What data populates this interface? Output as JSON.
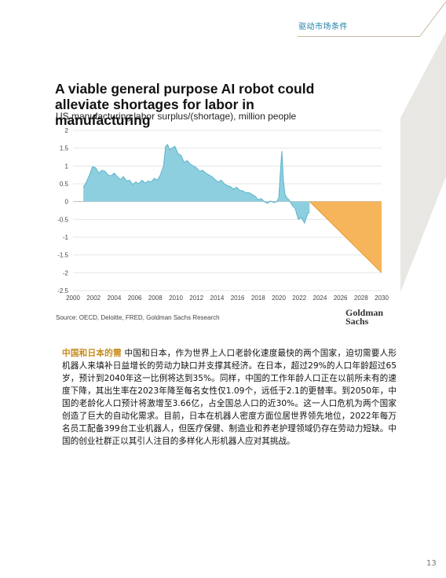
{
  "header": {
    "section_label": "驱动市场条件"
  },
  "chart": {
    "title": "A viable general purpose AI robot could alleviate shortages for labor in manufacturing",
    "subtitle": "US manufacturing labor surplus/(shortage), million people",
    "source": "Source: OECD, Deloitte, FRED, Goldman Sachs Research",
    "logo_line1": "Goldman",
    "logo_line2": "Sachs"
  },
  "chart_data": {
    "type": "area",
    "title": "A viable general purpose AI robot could alleviate shortages for labor in manufacturing",
    "ylabel": "US manufacturing labor surplus/(shortage), million people",
    "xlabel": "",
    "ylim": [
      -2.5,
      2
    ],
    "xlim": [
      2000,
      2030
    ],
    "y_ticks": [
      "2",
      "1.5",
      "1",
      "0.5",
      "0",
      "-0.5",
      "-1",
      "-1.5",
      "-2",
      "-2.5"
    ],
    "x_ticks": [
      "2000",
      "2002",
      "2004",
      "2006",
      "2008",
      "2010",
      "2012",
      "2014",
      "2016",
      "2018",
      "2020",
      "2022",
      "2024",
      "2026",
      "2028",
      "2030"
    ],
    "grid": "horizontal",
    "series": [
      {
        "color": "#8ecfdf",
        "x": [
          2001,
          2001.3,
          2001.6,
          2001.9,
          2002.2,
          2002.5,
          2002.8,
          2003.1,
          2003.4,
          2003.7,
          2004,
          2004.3,
          2004.6,
          2004.9,
          2005.2,
          2005.5,
          2005.8,
          2006.1,
          2006.4,
          2006.7,
          2007,
          2007.3,
          2007.6,
          2007.9,
          2008.2,
          2008.5,
          2008.8,
          2009,
          2009.2,
          2009.4,
          2009.6,
          2009.9,
          2010.2,
          2010.5,
          2010.8,
          2011.1,
          2011.4,
          2011.7,
          2012,
          2012.3,
          2012.6,
          2012.9,
          2013.2,
          2013.5,
          2013.8,
          2014.1,
          2014.4,
          2014.7,
          2015,
          2015.3,
          2015.6,
          2015.9,
          2016.2,
          2016.5,
          2016.8,
          2017.1,
          2017.4,
          2017.7,
          2018,
          2018.3,
          2018.6,
          2018.9,
          2019.2,
          2019.5,
          2019.8,
          2020.0,
          2020.15,
          2020.3,
          2020.45,
          2020.6,
          2020.8,
          2021,
          2021.3,
          2021.6,
          2021.9,
          2022.2,
          2022.5,
          2022.8,
          2023
        ],
        "y": [
          0.4,
          0.55,
          0.75,
          0.98,
          0.95,
          0.8,
          0.88,
          0.85,
          0.75,
          0.72,
          0.8,
          0.7,
          0.62,
          0.7,
          0.58,
          0.6,
          0.48,
          0.55,
          0.5,
          0.6,
          0.52,
          0.58,
          0.55,
          0.65,
          0.6,
          0.75,
          1.0,
          1.55,
          1.6,
          1.45,
          1.5,
          1.55,
          1.35,
          1.3,
          1.1,
          1.15,
          1.05,
          1.0,
          0.95,
          0.85,
          0.88,
          0.8,
          0.75,
          0.7,
          0.62,
          0.55,
          0.6,
          0.5,
          0.45,
          0.42,
          0.35,
          0.4,
          0.32,
          0.3,
          0.25,
          0.25,
          0.2,
          0.15,
          0.05,
          0.08,
          0.0,
          -0.05,
          0.02,
          -0.03,
          0.0,
          0.1,
          0.8,
          1.42,
          0.6,
          0.2,
          0.1,
          0.05,
          -0.1,
          -0.2,
          -0.5,
          -0.45,
          -0.6,
          -0.35,
          -0.3
        ]
      },
      {
        "color": "#f5b152",
        "x": [
          2023,
          2030
        ],
        "y": [
          0,
          -2
        ]
      }
    ]
  },
  "body": {
    "lead": "中国和日本的需",
    "text": "中国和日本，作为世界上人口老龄化速度最快的两个国家，迫切需要人形机器人来填补日益增长的劳动力缺口并支撑其经济。在日本，超过29%的人口年龄超过65岁，预计到2040年这一比例将达到35%。同样，中国的工作年龄人口正在以前所未有的速度下降，其出生率在2023年降至每名女性仅1.09个，远低于2.1的更替率。到2050年，中国的老龄化人口预计将激增至3.66亿，占全国总人口的近30%。这一人口危机为两个国家创造了巨大的自动化需求。目前，日本在机器人密度方面位居世界领先地位，2022年每万名员工配备399台工业机器人，但医疗保健、制造业和养老护理领域仍存在劳动力短缺。中国的创业社群正以其引人注目的多样化人形机器人应对其挑战。"
  },
  "footer": {
    "page_number": "13"
  }
}
